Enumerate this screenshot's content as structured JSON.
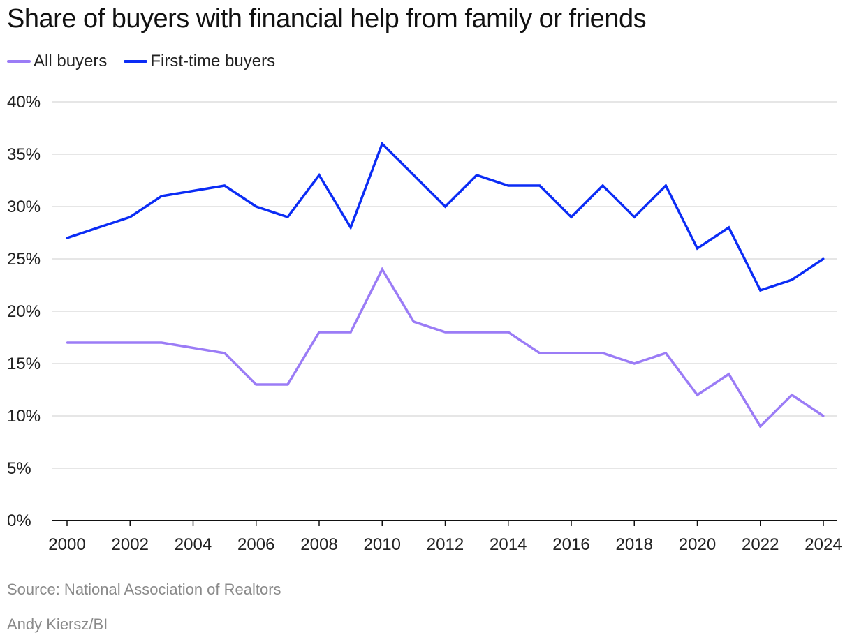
{
  "chart_data": {
    "type": "line",
    "title": "Share of buyers with financial help from family or friends",
    "xlabel": "",
    "ylabel": "",
    "ylim": [
      0,
      40
    ],
    "xlim": [
      2000,
      2024
    ],
    "y_ticks": [
      0,
      5,
      10,
      15,
      20,
      25,
      30,
      35,
      40
    ],
    "y_tick_labels": [
      "0%",
      "5%",
      "10%",
      "15%",
      "20%",
      "25%",
      "30%",
      "35%",
      "40%"
    ],
    "x_ticks": [
      2000,
      2002,
      2004,
      2006,
      2008,
      2010,
      2012,
      2014,
      2016,
      2018,
      2020,
      2022,
      2024
    ],
    "x_tick_labels": [
      "2000",
      "2002",
      "2004",
      "2006",
      "2008",
      "2010",
      "2012",
      "2014",
      "2016",
      "2018",
      "2020",
      "2022",
      "2024"
    ],
    "grid": true,
    "legend_position": "top-left",
    "x": [
      2000,
      2002,
      2003,
      2005,
      2006,
      2007,
      2008,
      2009,
      2010,
      2011,
      2012,
      2013,
      2014,
      2015,
      2016,
      2017,
      2018,
      2019,
      2020,
      2021,
      2022,
      2023,
      2024
    ],
    "series": [
      {
        "name": "All buyers",
        "color": "#9b7cf6",
        "values": [
          17,
          17,
          17,
          16,
          13,
          13,
          18,
          18,
          24,
          19,
          18,
          18,
          18,
          16,
          16,
          16,
          15,
          16,
          12,
          14,
          9,
          12,
          10
        ]
      },
      {
        "name": "First-time buyers",
        "color": "#0b2cf5",
        "values": [
          27,
          29,
          31,
          32,
          30,
          29,
          33,
          28,
          36,
          33,
          30,
          33,
          32,
          32,
          29,
          32,
          29,
          32,
          26,
          28,
          22,
          23,
          25
        ]
      }
    ]
  },
  "legend": {
    "items": [
      {
        "label": "All buyers",
        "color": "#9b7cf6"
      },
      {
        "label": "First-time buyers",
        "color": "#0b2cf5"
      }
    ]
  },
  "footer": {
    "source": "Source: National Association of Realtors",
    "credit": "Andy Kiersz/BI"
  }
}
